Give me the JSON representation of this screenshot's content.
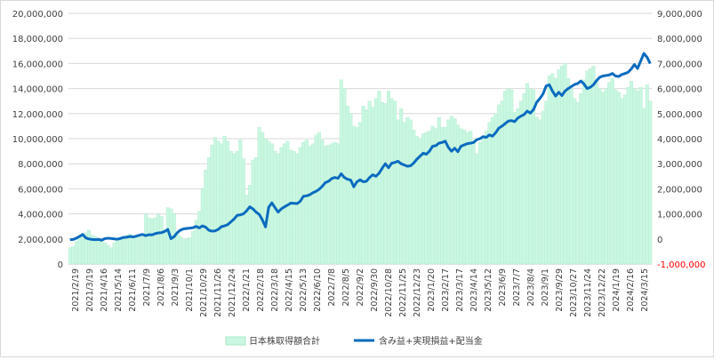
{
  "chart_data": {
    "type": "bar+line",
    "title": "",
    "left_axis": {
      "ylim": [
        0,
        20000000
      ],
      "ticks": [
        "0",
        "2,000,000",
        "4,000,000",
        "6,000,000",
        "8,000,000",
        "10,000,000",
        "12,000,000",
        "14,000,000",
        "16,000,000",
        "18,000,000",
        "20,000,000"
      ]
    },
    "right_axis": {
      "ylim": [
        -1000000,
        9000000
      ],
      "ticks": [
        "-1,000,000",
        "0",
        "1,000,000",
        "2,000,000",
        "3,000,000",
        "4,000,000",
        "5,000,000",
        "6,000,000",
        "7,000,000",
        "8,000,000",
        "9,000,000"
      ],
      "negative_color": "#ff0000"
    },
    "x_tick_labels": [
      "2021/2/19",
      "2021/3/19",
      "2021/4/16",
      "2021/5/14",
      "2021/6/11",
      "2021/7/9",
      "2021/8/6",
      "2021/9/3",
      "2021/10/1",
      "2021/10/29",
      "2021/11/26",
      "2021/12/24",
      "2022/1/21",
      "2022/2/18",
      "2022/3/18",
      "2022/4/15",
      "2022/5/13",
      "2022/6/10",
      "2022/7/8",
      "2022/8/5",
      "2022/9/2",
      "2022/9/30",
      "2022/10/28",
      "2022/11/25",
      "2022/12/23",
      "2023/1/20",
      "2023/2/17",
      "2023/3/17",
      "2023/4/14",
      "2023/5/12",
      "2023/6/9",
      "2023/7/7",
      "2023/8/4",
      "2023/9/1",
      "2023/9/29",
      "2023/10/27",
      "2023/11/24",
      "2023/12/22",
      "2024/1/19",
      "2024/2/16",
      "2024/3/15"
    ],
    "series": [
      {
        "name": "日本株取得額合計",
        "type": "bar",
        "axis": "left",
        "color": "#c9f7e1",
        "border": "#a9e8c8",
        "values": [
          1300000,
          1400000,
          1800000,
          2100000,
          2300000,
          2500000,
          2700000,
          2300000,
          2200000,
          2100000,
          2000000,
          1700000,
          1500000,
          1300000,
          1700000,
          2000000,
          2000000,
          2200000,
          2300000,
          2400000,
          2100000,
          2200000,
          2300000,
          2300000,
          4000000,
          3700000,
          3600000,
          3700000,
          4000000,
          3800000,
          2700000,
          4500000,
          4400000,
          4000000,
          2500000,
          2200000,
          2000000,
          2000000,
          2100000,
          2600000,
          3500000,
          4200000,
          6000000,
          7500000,
          8500000,
          9500000,
          10100000,
          9800000,
          9600000,
          10200000,
          9800000,
          9000000,
          8800000,
          9000000,
          9900000,
          8400000,
          5500000,
          6300000,
          8300000,
          8500000,
          10900000,
          10500000,
          10000000,
          9800000,
          9600000,
          9000000,
          8800000,
          9300000,
          9600000,
          9800000,
          9100000,
          9000000,
          8800000,
          9300000,
          9700000,
          9900000,
          9400000,
          9600000,
          10300000,
          10500000,
          9900000,
          9400000,
          9500000,
          9600000,
          9700000,
          9600000,
          14700000,
          14000000,
          12600000,
          12000000,
          11000000,
          10900000,
          11300000,
          12600000,
          12300000,
          13000000,
          12500000,
          13200000,
          13800000,
          12900000,
          12800000,
          13800000,
          13200000,
          13000000,
          11500000,
          12400000,
          11300000,
          11700000,
          11500000,
          10700000,
          10200000,
          10000000,
          10400000,
          10500000,
          10600000,
          11000000,
          10800000,
          11700000,
          10900000,
          10900000,
          11500000,
          11800000,
          11600000,
          11100000,
          10800000,
          10700000,
          10500000,
          10600000,
          9700000,
          8800000,
          9700000,
          10000000,
          10600000,
          11300000,
          11700000,
          12000000,
          12700000,
          13000000,
          13800000,
          14000000,
          13900000,
          12100000,
          12400000,
          13000000,
          13600000,
          14400000,
          14000000,
          13900000,
          11700000,
          11500000,
          12200000,
          13000000,
          15000000,
          15200000,
          14800000,
          15500000,
          15800000,
          16000000,
          14800000,
          14000000,
          13200000,
          12900000,
          13600000,
          14700000,
          15400000,
          15600000,
          15800000,
          14600000,
          14000000,
          13700000,
          14000000,
          14500000,
          14800000,
          13900000,
          13700000,
          13200000,
          13500000,
          14100000,
          14600000,
          14000000,
          13800000,
          14100000,
          12400000,
          14300000,
          13000000
        ]
      },
      {
        "name": "含み益+実現損益+配当金",
        "type": "line",
        "axis": "right",
        "color": "#0a6bbf",
        "values": [
          -30000,
          -20000,
          30000,
          100000,
          180000,
          40000,
          0,
          -20000,
          -30000,
          -20000,
          -50000,
          10000,
          30000,
          20000,
          0,
          -10000,
          20000,
          60000,
          70000,
          100000,
          80000,
          110000,
          150000,
          180000,
          130000,
          170000,
          160000,
          210000,
          240000,
          250000,
          300000,
          380000,
          10000,
          90000,
          250000,
          350000,
          400000,
          420000,
          430000,
          450000,
          500000,
          440000,
          520000,
          470000,
          350000,
          310000,
          320000,
          380000,
          490000,
          520000,
          570000,
          680000,
          790000,
          940000,
          960000,
          1000000,
          1120000,
          1280000,
          1200000,
          1070000,
          980000,
          760000,
          480000,
          1260000,
          1440000,
          1250000,
          1070000,
          1200000,
          1280000,
          1350000,
          1430000,
          1420000,
          1410000,
          1500000,
          1700000,
          1720000,
          1760000,
          1840000,
          1900000,
          1980000,
          2100000,
          2250000,
          2300000,
          2410000,
          2450000,
          2420000,
          2600000,
          2450000,
          2380000,
          2350000,
          2080000,
          2280000,
          2360000,
          2280000,
          2300000,
          2450000,
          2560000,
          2500000,
          2620000,
          2820000,
          3000000,
          2840000,
          3020000,
          3050000,
          3100000,
          3000000,
          2950000,
          2900000,
          2920000,
          3030000,
          3180000,
          3300000,
          3420000,
          3380000,
          3500000,
          3700000,
          3720000,
          3820000,
          3850000,
          3900000,
          3650000,
          3500000,
          3620000,
          3480000,
          3700000,
          3750000,
          3800000,
          3820000,
          3850000,
          3960000,
          4000000,
          4080000,
          4050000,
          4150000,
          4100000,
          4240000,
          4420000,
          4500000,
          4600000,
          4700000,
          4720000,
          4680000,
          4820000,
          4900000,
          4960000,
          5100000,
          5020000,
          5160000,
          5450000,
          5600000,
          5780000,
          6100000,
          6150000,
          5900000,
          5700000,
          5850000,
          5720000,
          5900000,
          6000000,
          6080000,
          6160000,
          6200000,
          6300000,
          6180000,
          6000000,
          6050000,
          6150000,
          6320000,
          6450000,
          6500000,
          6520000,
          6540000,
          6600000,
          6500000,
          6480000,
          6560000,
          6600000,
          6650000,
          6780000,
          6960000,
          6800000,
          7100000,
          7400000,
          7250000,
          7000000
        ]
      }
    ],
    "legend_position": "bottom",
    "grid": true
  }
}
